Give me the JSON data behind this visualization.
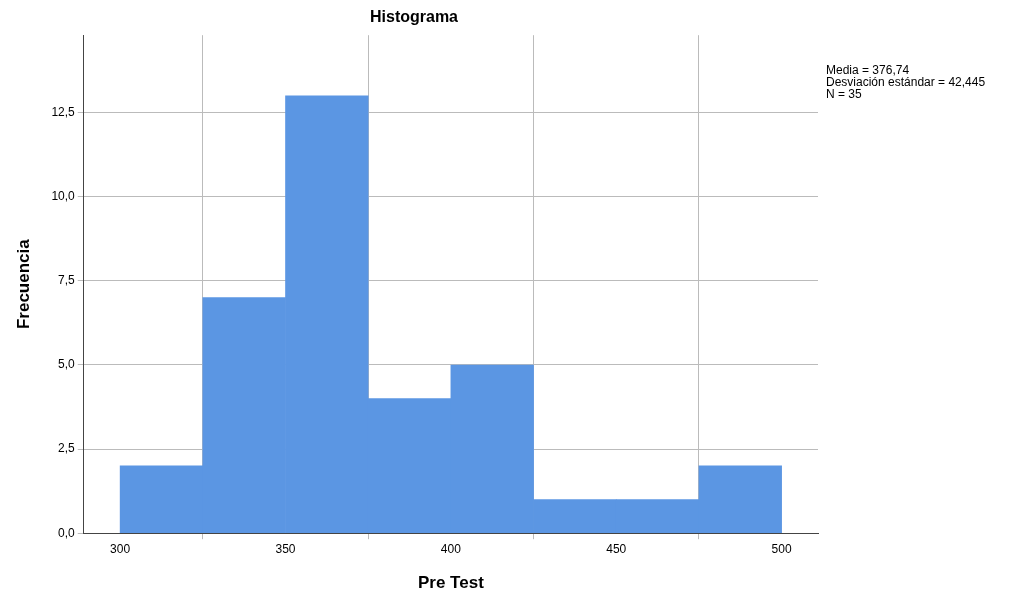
{
  "chart_data": {
    "type": "histogram",
    "title": "Histograma",
    "xlabel": "Pre Test",
    "ylabel": "Frecuencia",
    "bins": [
      300,
      325,
      350,
      375,
      400,
      425,
      450,
      475,
      500
    ],
    "values": [
      2,
      7,
      13,
      4,
      5,
      1,
      1,
      2
    ],
    "color": "#5b96e3",
    "xlim": [
      289,
      511
    ],
    "xticks": [
      300,
      350,
      400,
      450,
      500
    ],
    "ylim": [
      0,
      14.8
    ],
    "yticks": [
      {
        "value": 0,
        "label": "0,0"
      },
      {
        "value": 2.5,
        "label": "2,5"
      },
      {
        "value": 5,
        "label": "5,0"
      },
      {
        "value": 7.5,
        "label": "7,5"
      },
      {
        "value": 10,
        "label": "10,0"
      },
      {
        "value": 12.5,
        "label": "12,5"
      }
    ],
    "grid": true,
    "legend": false,
    "annotations": [
      "Media = 376,74",
      "Desviación estándar = 42,445",
      "N = 35"
    ]
  }
}
